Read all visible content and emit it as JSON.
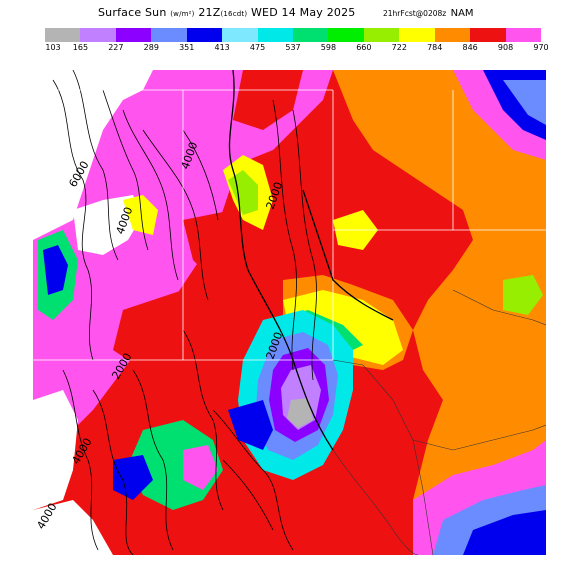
{
  "header": {
    "title_main": "Surface Sun",
    "title_units": "(w/m²)",
    "title_time": "21Z",
    "title_cdt": "(16cdt)",
    "title_date": "WED 14 May 2025",
    "run_info": "21hrFcst@0208z",
    "model": "NAM"
  },
  "legend": {
    "values": [
      "103",
      "165",
      "227",
      "289",
      "351",
      "413",
      "475",
      "537",
      "598",
      "660",
      "722",
      "784",
      "846",
      "908",
      "970"
    ],
    "colors": [
      "#b4b4b4",
      "#c080ff",
      "#8c00ff",
      "#6a8cff",
      "#0000ee",
      "#7ee8ff",
      "#00e8e8",
      "#00e070",
      "#00ee00",
      "#98ee00",
      "#ffff00",
      "#ff8c00",
      "#ee1111",
      "#ff55ee"
    ]
  },
  "map": {
    "contour_labels": [
      "6000",
      "4000",
      "4000",
      "2000",
      "2000",
      "2000",
      "4000",
      "4000"
    ]
  }
}
